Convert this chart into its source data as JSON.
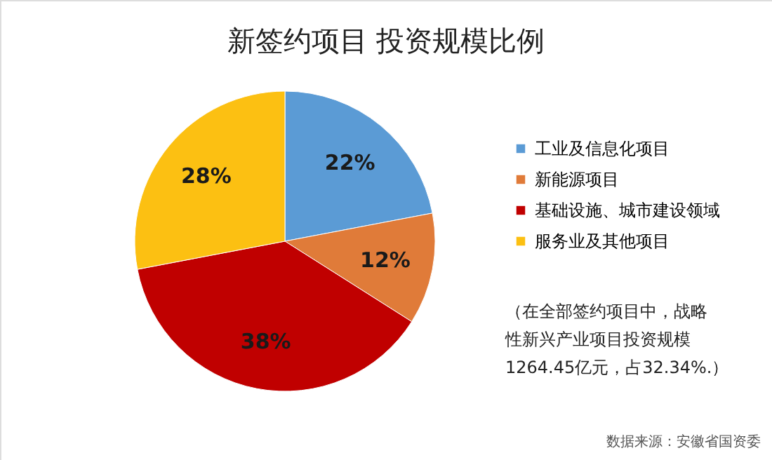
{
  "chart_data": {
    "type": "pie",
    "title": "新签约项目 投资规模比例",
    "categories": [
      "工业及信息化项目",
      "新能源项目",
      "基础设施、城市建设领域",
      "服务业及其他项目"
    ],
    "values": [
      22,
      12,
      38,
      28
    ],
    "colors": [
      "#5b9bd5",
      "#e07b39",
      "#c00000",
      "#fcc012"
    ],
    "value_labels": [
      "22%",
      "12%",
      "38%",
      "28%"
    ],
    "legend": "right",
    "annotations": [
      "（在全部签约项目中，战略性新兴产业项目投资规模1264.45亿元，占32.34%.）",
      "数据来源：安徽省国资委"
    ]
  }
}
